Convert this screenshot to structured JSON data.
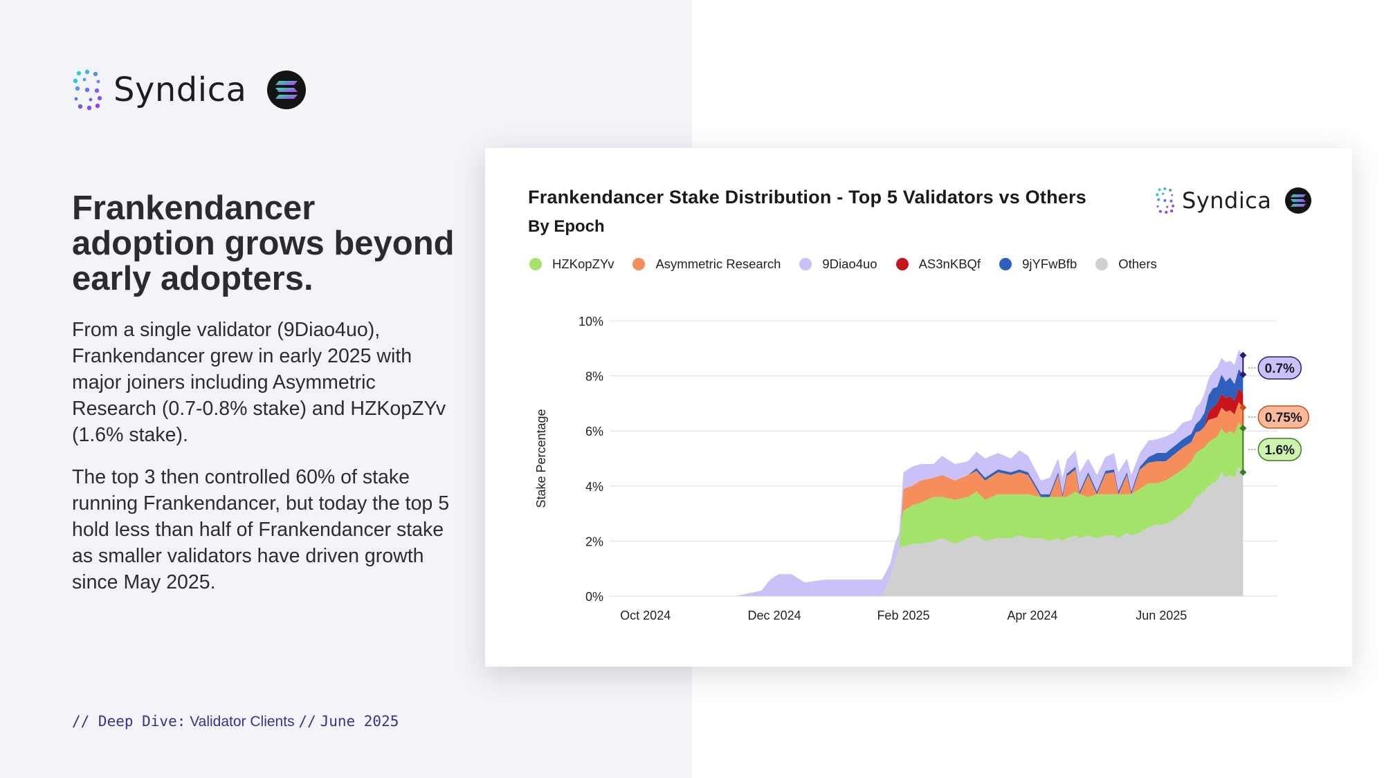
{
  "brand": {
    "name": "Syndica",
    "badge_icon": "solana-icon"
  },
  "headline": "Frankendancer adoption grows beyond early adopters.",
  "paragraphs": [
    "From a single validator (9Diao4uo), Frankendancer grew in early 2025 with major joiners including Asymmetric Research (0.7-0.8% stake) and HZKopZYv (1.6% stake).",
    "The top 3 then controlled 60% of stake running Frankendancer, but today the top 5 hold less than half of Frankendancer stake as smaller validators have driven growth since May 2025."
  ],
  "footer": {
    "prefix": "// Deep Dive:",
    "topic": "Validator Clients",
    "sep": "//",
    "date": "June 2025"
  },
  "colors": {
    "HZKopZYv": "#a4e36a",
    "Asymmetric Research": "#f68e5c",
    "9Diao4uo": "#c9c1f7",
    "AS3nKBQf": "#c8151c",
    "9jYFwBfb": "#2e5fbd",
    "Others": "#d0d0d0",
    "accent": "#3a2f8f"
  },
  "chart_data": {
    "type": "area",
    "stacked": true,
    "title": "Frankendancer Stake Distribution - Top 5 Validators vs Others",
    "subtitle": "By Epoch",
    "xlabel": "",
    "ylabel": "Stake Percentage",
    "ylim": [
      0,
      10
    ],
    "yticks": [
      "0%",
      "2%",
      "4%",
      "6%",
      "8%",
      "10%"
    ],
    "xticks": [
      {
        "label": "Oct 2024",
        "epoch": 3
      },
      {
        "label": "Dec 2024",
        "epoch": 33
      },
      {
        "label": "Feb 2025",
        "epoch": 63
      },
      {
        "label": "Apr 2024",
        "epoch": 93
      },
      {
        "label": "Jun 2025",
        "epoch": 123
      }
    ],
    "grid": true,
    "legend_position": "top",
    "x": [
      -5,
      0,
      5,
      10,
      15,
      18,
      21,
      24,
      27,
      30,
      32,
      34,
      37,
      40,
      45,
      50,
      55,
      58,
      60,
      61,
      62,
      62.5,
      63,
      65,
      67,
      70,
      72,
      75,
      78,
      80,
      82,
      85,
      88,
      90,
      92,
      95,
      97,
      99,
      100,
      101,
      103,
      104,
      106,
      108,
      110,
      112,
      113,
      115,
      116,
      118,
      120,
      122,
      124,
      126,
      128,
      130,
      131,
      132,
      133,
      134,
      135,
      136,
      137,
      138,
      139,
      140,
      141,
      142
    ],
    "series": [
      {
        "name": "Others",
        "values": [
          0,
          0,
          0,
          0,
          0,
          0,
          0,
          0,
          0,
          0,
          0,
          0,
          0,
          0,
          0,
          0,
          0,
          0,
          0.7,
          1.3,
          1.7,
          1.8,
          1.8,
          1.9,
          1.9,
          2.0,
          2.1,
          1.9,
          2.1,
          2.2,
          2.0,
          2.1,
          2.1,
          2.2,
          2.1,
          2.1,
          2.0,
          2.1,
          2.0,
          2.1,
          2.2,
          2.1,
          2.2,
          2.1,
          2.2,
          2.2,
          2.1,
          2.3,
          2.2,
          2.3,
          2.5,
          2.6,
          2.6,
          2.8,
          3.0,
          3.3,
          3.6,
          3.7,
          3.8,
          4.0,
          4.1,
          4.2,
          4.5,
          4.3,
          4.4,
          4.3,
          4.7,
          4.5
        ]
      },
      {
        "name": "HZKopZYv",
        "values": [
          0,
          0,
          0,
          0,
          0,
          0,
          0,
          0,
          0,
          0,
          0,
          0,
          0,
          0,
          0,
          0,
          0,
          0,
          0,
          0,
          0,
          0.9,
          1.3,
          1.4,
          1.5,
          1.6,
          1.5,
          1.6,
          1.5,
          1.6,
          1.5,
          1.6,
          1.6,
          1.5,
          1.6,
          1.5,
          1.6,
          1.5,
          1.6,
          1.5,
          1.6,
          1.6,
          1.4,
          1.6,
          1.5,
          1.5,
          1.6,
          1.4,
          1.5,
          1.6,
          1.6,
          1.5,
          1.6,
          1.6,
          1.6,
          1.6,
          1.6,
          1.6,
          1.6,
          1.6,
          1.6,
          1.6,
          1.6,
          1.6,
          1.6,
          1.6,
          1.6,
          1.6
        ]
      },
      {
        "name": "Asymmetric Research",
        "values": [
          0,
          0,
          0,
          0,
          0,
          0,
          0,
          0,
          0,
          0,
          0,
          0,
          0,
          0,
          0,
          0,
          0,
          0,
          0,
          0,
          0,
          0,
          0.8,
          0.7,
          0.8,
          0.7,
          0.8,
          0.7,
          0.8,
          0.75,
          0.7,
          0.8,
          0.7,
          0.8,
          0.7,
          0,
          0,
          0.8,
          0,
          0.75,
          0.8,
          0,
          0.8,
          0,
          0.75,
          0.8,
          0,
          0.7,
          0,
          0.7,
          0.75,
          0.8,
          0.7,
          0.75,
          0.8,
          0.7,
          0.75,
          0.7,
          0.75,
          0.8,
          0.75,
          0.7,
          0.75,
          0.8,
          0.75,
          0.7,
          0.75,
          0.75
        ]
      },
      {
        "name": "AS3nKBQf",
        "values": [
          0,
          0,
          0,
          0,
          0,
          0,
          0,
          0,
          0,
          0,
          0,
          0,
          0,
          0,
          0,
          0,
          0,
          0,
          0,
          0,
          0,
          0,
          0,
          0,
          0,
          0,
          0,
          0,
          0,
          0,
          0,
          0,
          0,
          0,
          0,
          0,
          0,
          0,
          0,
          0,
          0,
          0,
          0,
          0,
          0,
          0,
          0,
          0,
          0,
          0,
          0,
          0,
          0,
          0,
          0,
          0,
          0,
          0,
          0,
          0.3,
          0.4,
          0.5,
          0.5,
          0.5,
          0.5,
          0.5,
          0.5,
          0.5
        ]
      },
      {
        "name": "9jYFwBfb",
        "values": [
          0,
          0,
          0,
          0,
          0,
          0,
          0,
          0,
          0,
          0,
          0,
          0,
          0,
          0,
          0,
          0,
          0,
          0,
          0,
          0,
          0,
          0,
          0,
          0,
          0,
          0,
          0,
          0,
          0,
          0.1,
          0.1,
          0.1,
          0.1,
          0.1,
          0.1,
          0.1,
          0.1,
          0.1,
          0.1,
          0.1,
          0.1,
          0.1,
          0.1,
          0.1,
          0.1,
          0.1,
          0.1,
          0.1,
          0.1,
          0.1,
          0.2,
          0.3,
          0.3,
          0.3,
          0.3,
          0.3,
          0.3,
          0.4,
          0.5,
          0.6,
          0.7,
          0.6,
          0.7,
          0.6,
          0.7,
          0.6,
          0.7,
          0.7
        ]
      },
      {
        "name": "9Diao4uo",
        "values": [
          0,
          0,
          0,
          0,
          0,
          0,
          0,
          0,
          0.1,
          0.2,
          0.6,
          0.8,
          0.8,
          0.5,
          0.6,
          0.6,
          0.6,
          0.6,
          0.5,
          0.6,
          0.6,
          0.6,
          0.6,
          0.7,
          0.6,
          0.5,
          0.7,
          0.6,
          0.5,
          0.6,
          0.7,
          0.6,
          0.5,
          0.7,
          0.6,
          0.5,
          0.6,
          0.5,
          0.6,
          0.5,
          0.6,
          0.7,
          0.5,
          0.6,
          0.5,
          0.6,
          0.7,
          0.5,
          0.6,
          0.5,
          0.6,
          0.5,
          0.6,
          0.5,
          0.6,
          0.5,
          0.6,
          0.6,
          0.7,
          0.6,
          0.6,
          0.7,
          0.6,
          0.7,
          0.6,
          0.7,
          0.7,
          0.7
        ]
      }
    ],
    "annotations": [
      {
        "label": "0.7%",
        "series": "9Diao4uo",
        "color": "#c9c1f7",
        "stroke": "#2a1a6e"
      },
      {
        "label": "0.75%",
        "series": "Asymmetric Research",
        "color": "#f9b99a",
        "stroke": "#c84d16"
      },
      {
        "label": "1.6%",
        "series": "HZKopZYv",
        "color": "#cdf3ae",
        "stroke": "#3a7a1e"
      }
    ]
  }
}
